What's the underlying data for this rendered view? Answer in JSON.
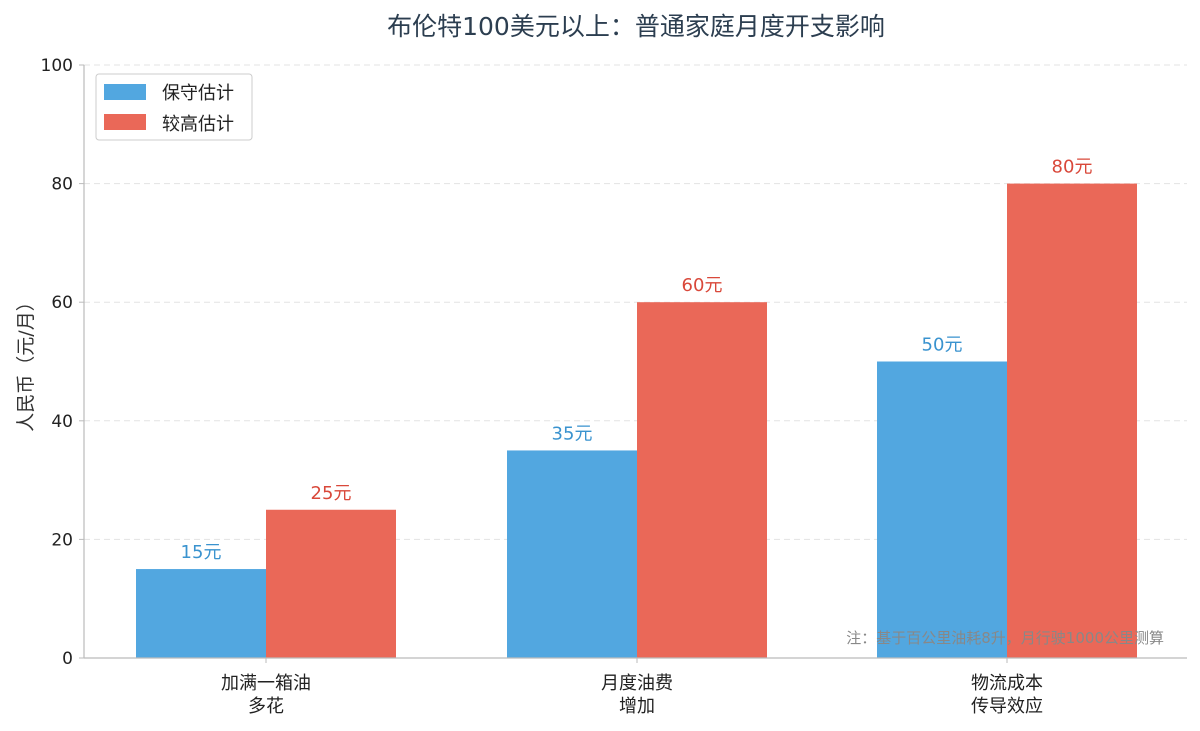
{
  "chart_data": {
    "type": "bar",
    "title": "布伦特100美元以上：普通家庭月度开支影响",
    "ylabel": "人民币（元/月）",
    "xlabel": "",
    "ylim": [
      0,
      100
    ],
    "yticks": [
      "0",
      "20",
      "40",
      "60",
      "80",
      "100"
    ],
    "categories": [
      [
        "加满一箱油",
        "多花"
      ],
      [
        "月度油费",
        "增加"
      ],
      [
        "物流成本",
        "传导效应"
      ]
    ],
    "series": [
      {
        "name": "保守估计",
        "values": [
          15,
          35,
          50
        ],
        "labels": [
          "15元",
          "35元",
          "50元"
        ],
        "color": "#52a7e0"
      },
      {
        "name": "较高估计",
        "values": [
          25,
          60,
          80
        ],
        "labels": [
          "25元",
          "60元",
          "80元"
        ],
        "color": "#ea6858"
      }
    ],
    "label_colors": [
      "#3a93cf",
      "#d9483a"
    ],
    "grid": true,
    "legend": "top-left",
    "note": "注：基于百公里油耗8升，月行驶1000公里测算"
  }
}
